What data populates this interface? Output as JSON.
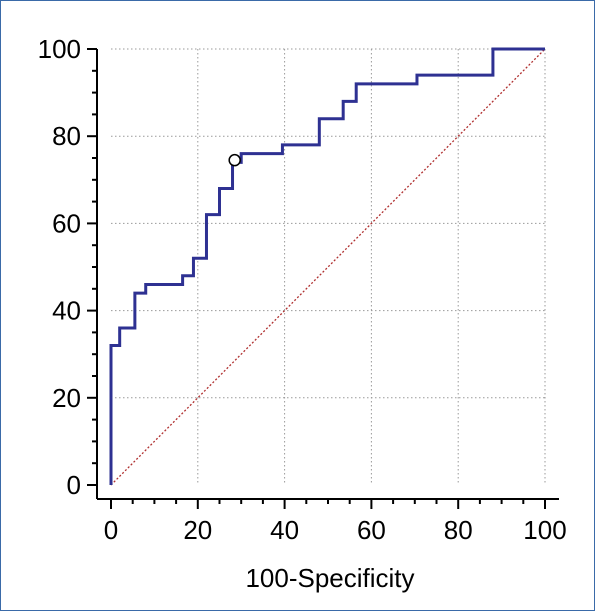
{
  "chart_data": {
    "type": "line",
    "title": "",
    "xlabel": "100-Specificity",
    "ylabel": "",
    "xlim": [
      0,
      100
    ],
    "ylim": [
      0,
      100
    ],
    "x_ticks": [
      0,
      20,
      40,
      60,
      80,
      100
    ],
    "y_ticks": [
      0,
      20,
      40,
      60,
      80,
      100
    ],
    "x_tick_labels": [
      "0",
      "20",
      "40",
      "60",
      "80",
      "100"
    ],
    "y_tick_labels": [
      "0",
      "20",
      "40",
      "60",
      "80",
      "100"
    ],
    "grid": true,
    "colors": {
      "roc": "#2e3192",
      "reference": "#b03030",
      "grid": "#9a9a9a"
    },
    "series": [
      {
        "type": "step",
        "points": [
          [
            0,
            0
          ],
          [
            0,
            32
          ],
          [
            2,
            32
          ],
          [
            2,
            36
          ],
          [
            5.5,
            36
          ],
          [
            5.5,
            44
          ],
          [
            8,
            44
          ],
          [
            8,
            46
          ],
          [
            16.5,
            46
          ],
          [
            16.5,
            48
          ],
          [
            19,
            48
          ],
          [
            19,
            52
          ],
          [
            22,
            52
          ],
          [
            22,
            62
          ],
          [
            25,
            62
          ],
          [
            25,
            68
          ],
          [
            28,
            68
          ],
          [
            28,
            74
          ],
          [
            30,
            74
          ],
          [
            30,
            76
          ],
          [
            39.5,
            76
          ],
          [
            39.5,
            78
          ],
          [
            48,
            78
          ],
          [
            48,
            84
          ],
          [
            53.5,
            84
          ],
          [
            53.5,
            88
          ],
          [
            56.5,
            88
          ],
          [
            56.5,
            92
          ],
          [
            70.5,
            92
          ],
          [
            70.5,
            94
          ],
          [
            88,
            94
          ],
          [
            88,
            100
          ],
          [
            100,
            100
          ]
        ]
      },
      {
        "type": "reference",
        "points": [
          [
            0,
            0
          ],
          [
            100,
            100
          ]
        ]
      }
    ],
    "marker": {
      "x": 28.5,
      "y": 74.5
    }
  }
}
